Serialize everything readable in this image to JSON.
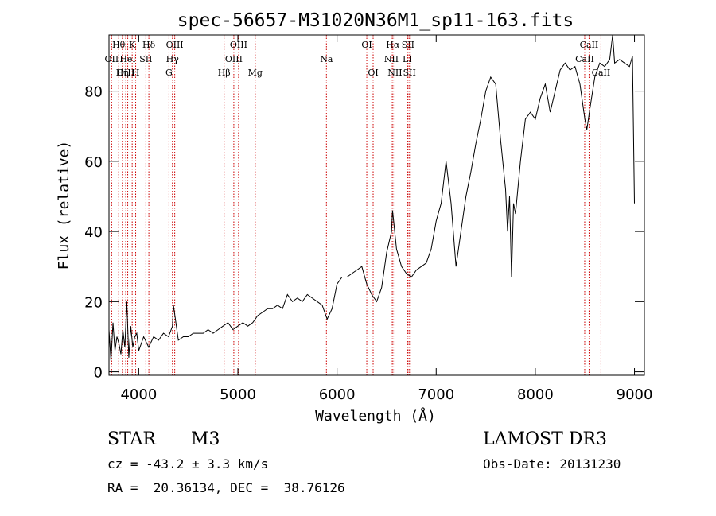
{
  "chart_data": {
    "type": "line",
    "title": "spec-56657-M31020N36M1_sp11-163.fits",
    "xlabel": "Wavelength (Å)",
    "ylabel": "Flux (relative)",
    "xlim": [
      3700,
      9100
    ],
    "ylim": [
      -1,
      96
    ],
    "x_ticks": [
      4000,
      5000,
      6000,
      7000,
      8000,
      9000
    ],
    "y_ticks": [
      0,
      20,
      40,
      60,
      80
    ],
    "grid": false,
    "series": [
      {
        "name": "spectrum",
        "x": [
          3700,
          3720,
          3740,
          3760,
          3780,
          3800,
          3820,
          3840,
          3860,
          3880,
          3900,
          3920,
          3940,
          3960,
          3980,
          4000,
          4050,
          4100,
          4150,
          4200,
          4250,
          4300,
          4340,
          4350,
          4400,
          4450,
          4500,
          4550,
          4600,
          4650,
          4700,
          4750,
          4800,
          4850,
          4900,
          4950,
          5000,
          5050,
          5100,
          5150,
          5200,
          5250,
          5300,
          5350,
          5400,
          5450,
          5500,
          5550,
          5600,
          5650,
          5700,
          5750,
          5800,
          5850,
          5900,
          5950,
          6000,
          6050,
          6100,
          6150,
          6200,
          6250,
          6300,
          6350,
          6400,
          6450,
          6500,
          6550,
          6560,
          6600,
          6650,
          6700,
          6750,
          6800,
          6850,
          6900,
          6950,
          7000,
          7050,
          7100,
          7150,
          7200,
          7250,
          7300,
          7350,
          7400,
          7450,
          7500,
          7550,
          7600,
          7650,
          7700,
          7720,
          7740,
          7760,
          7780,
          7800,
          7850,
          7900,
          7950,
          8000,
          8050,
          8100,
          8150,
          8200,
          8250,
          8300,
          8350,
          8400,
          8450,
          8500,
          8520,
          8550,
          8600,
          8650,
          8700,
          8750,
          8780,
          8800,
          8850,
          8900,
          8950,
          8980,
          9000
        ],
        "values": [
          12,
          3,
          14,
          6,
          10,
          8,
          5,
          12,
          7,
          20,
          4,
          13,
          7,
          10,
          11,
          6,
          10,
          7,
          10,
          9,
          11,
          10,
          13,
          19,
          9,
          10,
          10,
          11,
          11,
          11,
          12,
          11,
          12,
          13,
          14,
          12,
          13,
          14,
          13,
          14,
          16,
          17,
          18,
          18,
          19,
          18,
          22,
          20,
          21,
          20,
          22,
          21,
          20,
          19,
          15,
          18,
          25,
          27,
          27,
          28,
          29,
          30,
          25,
          22,
          20,
          24,
          34,
          40,
          46,
          35,
          30,
          28,
          27,
          29,
          30,
          31,
          35,
          43,
          48,
          60,
          48,
          30,
          40,
          50,
          57,
          65,
          72,
          80,
          84,
          82,
          66,
          52,
          40,
          50,
          27,
          48,
          45,
          60,
          72,
          74,
          72,
          78,
          82,
          74,
          80,
          86,
          88,
          86,
          87,
          82,
          72,
          69,
          75,
          84,
          88,
          87,
          89,
          96,
          88,
          89,
          88,
          87,
          90,
          48
        ]
      }
    ],
    "line_labels": [
      {
        "name": "Hθ",
        "x": 3798,
        "row": 0
      },
      {
        "name": "OII",
        "x": 3727,
        "row": 1
      },
      {
        "name": "OIII",
        "x": 3869,
        "row": 2
      },
      {
        "name": "HeI",
        "x": 3889,
        "row": 1
      },
      {
        "name": "K",
        "x": 3934,
        "row": 0
      },
      {
        "name": "Hη",
        "x": 3835,
        "row": 2
      },
      {
        "name": "SII",
        "x": 4072,
        "row": 1
      },
      {
        "name": "H",
        "x": 3969,
        "row": 2
      },
      {
        "name": "Hδ",
        "x": 4102,
        "row": 0
      },
      {
        "name": "OIII",
        "x": 4363,
        "row": 0
      },
      {
        "name": "Hγ",
        "x": 4340,
        "row": 1
      },
      {
        "name": "G",
        "x": 4305,
        "row": 2
      },
      {
        "name": "Hβ",
        "x": 4861,
        "row": 2
      },
      {
        "name": "OIII",
        "x": 5007,
        "row": 0
      },
      {
        "name": "OIII",
        "x": 4959,
        "row": 1
      },
      {
        "name": "Mg",
        "x": 5175,
        "row": 2
      },
      {
        "name": "Na",
        "x": 5893,
        "row": 1
      },
      {
        "name": "OI",
        "x": 6300,
        "row": 0
      },
      {
        "name": "OI",
        "x": 6364,
        "row": 2
      },
      {
        "name": "Hα",
        "x": 6563,
        "row": 0
      },
      {
        "name": "SII",
        "x": 6716,
        "row": 0
      },
      {
        "name": "NII",
        "x": 6548,
        "row": 1
      },
      {
        "name": "LI",
        "x": 6708,
        "row": 1
      },
      {
        "name": "NII",
        "x": 6584,
        "row": 2
      },
      {
        "name": "SII",
        "x": 6731,
        "row": 2
      },
      {
        "name": "CaII",
        "x": 8542,
        "row": 0
      },
      {
        "name": "CaII",
        "x": 8498,
        "row": 1
      },
      {
        "name": "CaII",
        "x": 8662,
        "row": 2
      }
    ],
    "line_color": "#cc0000"
  },
  "info": {
    "object_type": "STAR",
    "subclass": "M3",
    "survey": "LAMOST DR3",
    "cz": "cz = -43.2 ± 3.3 km/s",
    "obs_date": "Obs-Date: 20131230",
    "radec": "RA =  20.36134, DEC =  38.76126"
  }
}
